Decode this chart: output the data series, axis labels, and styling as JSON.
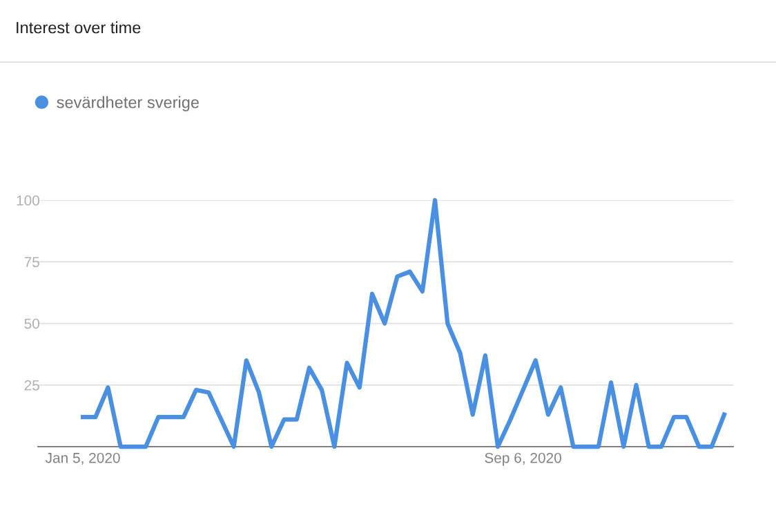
{
  "chart_data": {
    "type": "line",
    "title": "Interest over time",
    "x": [
      "2020-01-05",
      "2020-01-12",
      "2020-01-19",
      "2020-01-26",
      "2020-02-02",
      "2020-02-09",
      "2020-02-16",
      "2020-02-23",
      "2020-03-01",
      "2020-03-08",
      "2020-03-15",
      "2020-03-22",
      "2020-03-29",
      "2020-04-05",
      "2020-04-12",
      "2020-04-19",
      "2020-04-26",
      "2020-05-03",
      "2020-05-10",
      "2020-05-17",
      "2020-05-24",
      "2020-05-31",
      "2020-06-07",
      "2020-06-14",
      "2020-06-21",
      "2020-06-28",
      "2020-07-05",
      "2020-07-12",
      "2020-07-19",
      "2020-07-26",
      "2020-08-02",
      "2020-08-09",
      "2020-08-16",
      "2020-08-23",
      "2020-08-30",
      "2020-09-06",
      "2020-09-13",
      "2020-09-20",
      "2020-09-27",
      "2020-10-04",
      "2020-10-11",
      "2020-10-18",
      "2020-10-25",
      "2020-11-01",
      "2020-11-08",
      "2020-11-15",
      "2020-11-22",
      "2020-11-29",
      "2020-12-06",
      "2020-12-13",
      "2020-12-20",
      "2020-12-27"
    ],
    "series": [
      {
        "name": "sevärdheter sverige",
        "color": "#4a90e2",
        "values": [
          12,
          12,
          24,
          0,
          0,
          0,
          12,
          12,
          12,
          23,
          22,
          11,
          0,
          35,
          22,
          0,
          11,
          11,
          32,
          23,
          0,
          34,
          24,
          62,
          50,
          69,
          71,
          63,
          100,
          50,
          38,
          13,
          37,
          0,
          11,
          23,
          35,
          13,
          24,
          0,
          0,
          0,
          26,
          0,
          25,
          0,
          0,
          12,
          12,
          0,
          0,
          13
        ]
      }
    ],
    "xlim": [
      "2019-12-11",
      "2021-01-01"
    ],
    "xticks": [
      {
        "value": "2020-01-05",
        "label": "Jan 5, 2020"
      },
      {
        "value": "2020-09-06",
        "label": "Sep 6, 2020"
      }
    ],
    "ylim": [
      0,
      100
    ],
    "yticks": [
      {
        "value": 0,
        "label": null
      },
      25,
      50,
      75,
      100
    ],
    "grid": "y",
    "legend": "top left",
    "marker": "none",
    "line_style": "solid"
  }
}
